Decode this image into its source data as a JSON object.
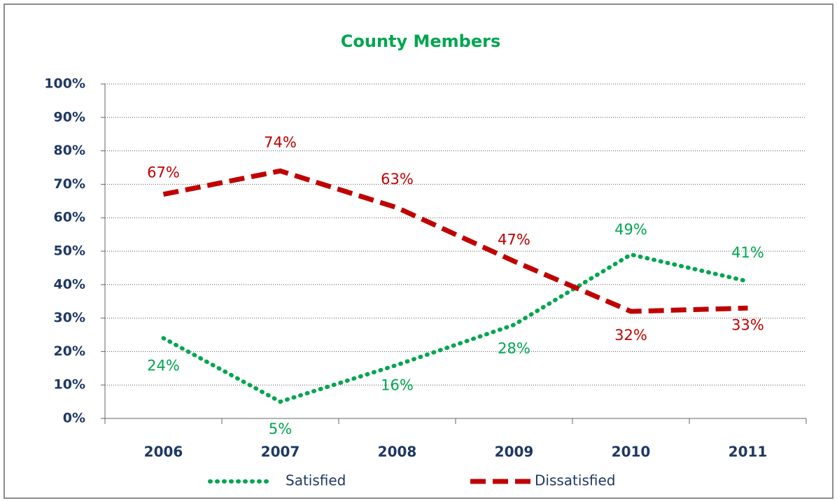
{
  "chart_data": {
    "type": "line",
    "title": "County Members",
    "categories": [
      "2006",
      "2007",
      "2008",
      "2009",
      "2010",
      "2011"
    ],
    "series": [
      {
        "name": "Satisfied",
        "color": "#00a650",
        "style": "dotted",
        "values": [
          24,
          5,
          16,
          28,
          49,
          41
        ],
        "value_labels": [
          "24%",
          "5%",
          "16%",
          "28%",
          "49%",
          "41%"
        ]
      },
      {
        "name": "Dissatisfied",
        "color": "#c00000",
        "style": "dashed",
        "values": [
          67,
          74,
          63,
          47,
          32,
          33
        ],
        "value_labels": [
          "67%",
          "74%",
          "63%",
          "47%",
          "32%",
          "33%"
        ]
      }
    ],
    "ylim": [
      0,
      100
    ],
    "yticks": [
      {
        "value": 0,
        "label": "0%"
      },
      {
        "value": 10,
        "label": "10%"
      },
      {
        "value": 20,
        "label": "20%"
      },
      {
        "value": 30,
        "label": "30%"
      },
      {
        "value": 40,
        "label": "40%"
      },
      {
        "value": 50,
        "label": "50%"
      },
      {
        "value": 60,
        "label": "60%"
      },
      {
        "value": 70,
        "label": "70%"
      },
      {
        "value": 80,
        "label": "80%"
      },
      {
        "value": 90,
        "label": "90%"
      },
      {
        "value": 100,
        "label": "100%"
      }
    ],
    "grid": true,
    "legend": "bottom"
  }
}
